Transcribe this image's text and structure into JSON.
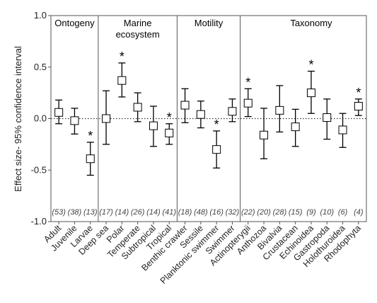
{
  "chart_data": {
    "type": "scatter",
    "title": "",
    "xlabel": "",
    "ylabel": "Effect size- 95% confidence interval",
    "ylim": [
      -1.0,
      1.0
    ],
    "yticks": [
      "1.0",
      "0.5",
      "0.0",
      "-0.5",
      "-1.0"
    ],
    "reference_line": 0,
    "groups": [
      {
        "label": "Ontogeny",
        "start": 0,
        "end": 2
      },
      {
        "label": "Marine",
        "label2": "ecosystem",
        "start": 3,
        "end": 7
      },
      {
        "label": "Motility",
        "start": 8,
        "end": 11
      },
      {
        "label": "Taxonomy",
        "start": 12,
        "end": 20
      }
    ],
    "categories": [
      "Adult",
      "Juvenile",
      "Larvae",
      "Deep sea",
      "Polar",
      "Temperate",
      "Subtropical",
      "Tropical",
      "Benthic crawler",
      "Sessile",
      "Planktonic swimmer",
      "Swimmer",
      "Actinopterygii",
      "Anthozoa",
      "Bivalvia",
      "Crustacean",
      "Echinoidea",
      "Gastropoda",
      "Holothuroidea",
      "Rhodophyta"
    ],
    "n_labels": [
      "(53)",
      "(38)",
      "(13)",
      "(17)",
      "(14)",
      "(26)",
      "(14)",
      "(41)",
      "(18)",
      "(48)",
      "(16)",
      "(32)",
      "(22)",
      "(20)",
      "(28)",
      "(15)",
      "(9)",
      "(10)",
      "(6)",
      "(4)"
    ],
    "mean": [
      0.06,
      -0.02,
      -0.39,
      0.0,
      0.37,
      0.11,
      -0.07,
      -0.14,
      0.13,
      0.04,
      -0.3,
      0.07,
      0.15,
      -0.16,
      0.08,
      -0.08,
      0.25,
      0.01,
      -0.11,
      0.12
    ],
    "lower": [
      -0.05,
      -0.15,
      -0.55,
      -0.25,
      0.21,
      -0.03,
      -0.27,
      -0.25,
      -0.04,
      -0.09,
      -0.48,
      -0.03,
      0.02,
      -0.39,
      -0.13,
      -0.27,
      0.05,
      -0.2,
      -0.28,
      0.03
    ],
    "upper": [
      0.18,
      0.1,
      -0.23,
      0.27,
      0.54,
      0.25,
      0.12,
      -0.05,
      0.29,
      0.17,
      -0.12,
      0.19,
      0.29,
      0.1,
      0.32,
      0.09,
      0.46,
      0.19,
      0.05,
      0.19
    ],
    "significant": [
      false,
      false,
      true,
      false,
      true,
      false,
      false,
      true,
      false,
      false,
      true,
      false,
      true,
      false,
      false,
      false,
      true,
      false,
      false,
      true
    ],
    "significance_marker": "*",
    "grid": false
  }
}
